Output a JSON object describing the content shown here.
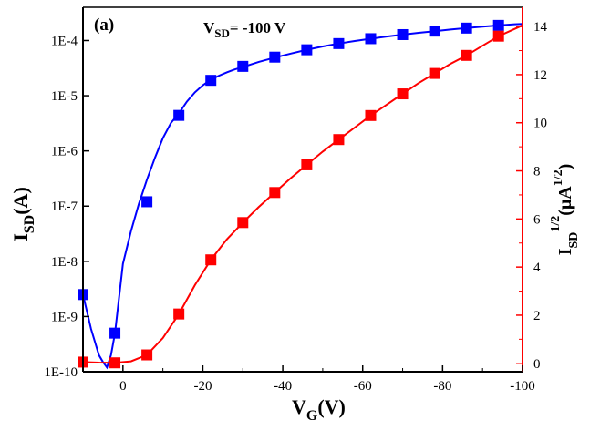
{
  "chart_data": {
    "type": "line",
    "panel_label": "(a)",
    "annotation": {
      "main": "V",
      "sub": "SD",
      "rest": "= -100 V"
    },
    "x_axis": {
      "label_main": "V",
      "label_sub": "G",
      "label_paren": "(V)",
      "range": [
        10,
        -100
      ],
      "ticks": [
        0,
        -20,
        -40,
        -60,
        -80,
        -100
      ],
      "tick_labels": [
        "0",
        "-20",
        "-40",
        "-60",
        "-80",
        "-100"
      ]
    },
    "y_left": {
      "label_main": "I",
      "label_sub": "SD",
      "label_paren": "(A)",
      "scale": "log",
      "range": [
        1e-10,
        0.0004
      ],
      "color": "#000000",
      "tick_values": [
        1e-10,
        1e-09,
        1e-08,
        1e-07,
        1e-06,
        1e-05,
        0.0001
      ],
      "tick_labels": [
        "1E-10",
        "1E-9",
        "1E-8",
        "1E-7",
        "1E-6",
        "1E-5",
        "1E-4"
      ]
    },
    "y_right": {
      "label_main": "I",
      "label_sub": "SD",
      "label_sup": "1/2",
      "label_paren_open": "(",
      "label_unit": "μA",
      "label_unit_sup": "1/2",
      "label_paren_close": ")",
      "scale": "linear",
      "range": [
        -0.35,
        14.8
      ],
      "color": "#ff0000",
      "ticks": [
        0,
        2,
        4,
        6,
        8,
        10,
        12,
        14
      ],
      "tick_labels": [
        "0",
        "2",
        "4",
        "6",
        "8",
        "10",
        "12",
        "14"
      ]
    },
    "series": [
      {
        "axis": "left",
        "color": "#0000ff",
        "marker": "square",
        "x": [
          10,
          2,
          -6,
          -14,
          -22,
          -30,
          -38,
          -46,
          -54,
          -62,
          -70,
          -78,
          -86,
          -94
        ],
        "y": [
          2.5e-09,
          5e-10,
          1.2e-07,
          4.4e-06,
          1.9e-05,
          3.4e-05,
          5e-05,
          6.8e-05,
          8.8e-05,
          0.000108,
          0.000128,
          0.000148,
          0.000168,
          0.000188
        ],
        "curve_x": [
          10,
          8,
          6,
          5,
          4,
          3,
          2,
          0,
          -2,
          -4,
          -6,
          -8,
          -10,
          -12,
          -14,
          -16,
          -18,
          -20,
          -22,
          -24,
          -26,
          -28,
          -30,
          -34,
          -38,
          -42,
          -46,
          -50,
          -54,
          -58,
          -62,
          -66,
          -70,
          -74,
          -78,
          -82,
          -86,
          -90,
          -94,
          -98,
          -100
        ],
        "curve_y": [
          2.5e-09,
          6e-10,
          2e-10,
          1.5e-10,
          1.2e-10,
          2e-10,
          5e-10,
          9e-09,
          3.5e-08,
          1.1e-07,
          3e-07,
          7.5e-07,
          1.7e-06,
          3.2e-06,
          4.8e-06,
          7.8e-06,
          1.15e-05,
          1.55e-05,
          1.95e-05,
          2.3e-05,
          2.65e-05,
          3e-05,
          3.3e-05,
          4.1e-05,
          4.9e-05,
          5.8e-05,
          6.8e-05,
          7.8e-05,
          8.8e-05,
          9.8e-05,
          0.000108,
          0.000118,
          0.000128,
          0.000138,
          0.000148,
          0.000158,
          0.000168,
          0.000178,
          0.000188,
          0.000197,
          0.0002
        ]
      },
      {
        "axis": "right",
        "color": "#ff0000",
        "marker": "square",
        "x": [
          10,
          2,
          -6,
          -14,
          -22,
          -30,
          -38,
          -46,
          -54,
          -62,
          -70,
          -78,
          -86,
          -94
        ],
        "y": [
          0.05,
          0.02,
          0.35,
          2.05,
          4.3,
          5.85,
          7.1,
          8.25,
          9.3,
          10.3,
          11.2,
          12.05,
          12.8,
          13.6
        ],
        "curve_x": [
          10,
          6,
          2,
          -2,
          -6,
          -10,
          -14,
          -18,
          -22,
          -26,
          -30,
          -34,
          -38,
          -42,
          -46,
          -50,
          -54,
          -58,
          -62,
          -66,
          -70,
          -74,
          -78,
          -82,
          -86,
          -90,
          -94,
          -98,
          -100
        ],
        "curve_y": [
          0.05,
          0.03,
          0.02,
          0.08,
          0.35,
          1.05,
          2.05,
          3.25,
          4.3,
          5.15,
          5.85,
          6.5,
          7.1,
          7.7,
          8.25,
          8.8,
          9.3,
          9.8,
          10.3,
          10.75,
          11.2,
          11.65,
          12.05,
          12.45,
          12.8,
          13.2,
          13.6,
          13.9,
          14.05
        ]
      }
    ]
  }
}
